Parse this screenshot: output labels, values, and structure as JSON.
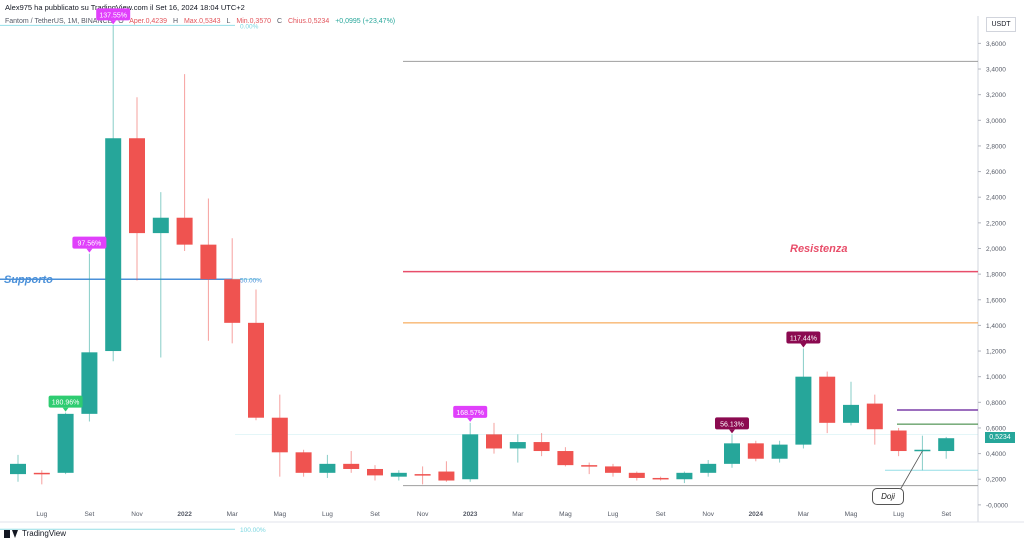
{
  "header": {
    "publisher": "Alex975 ha pubblicato su TradingView.com il Set 16, 2024 18:04 UTC+2"
  },
  "legend": {
    "symbol": "Fantom / TetherUS, 1M, BINANCE",
    "open_label": "O",
    "open": "Aper.0,4239",
    "high_label": "H",
    "high": "Max.0,5343",
    "low_label": "L",
    "low": "Min.0,3570",
    "close_label": "C",
    "close": "Chius.0,5234",
    "change": "+0,0995 (+23,47%)"
  },
  "currency_label": "USDT",
  "last_price_tag": "0,5234",
  "footer": {
    "brand": "TradingView"
  },
  "annotations": {
    "supporto": "Supporto",
    "resistenza": "Resistenza",
    "doji": "Doji"
  },
  "colors": {
    "up": "#26a69a",
    "down": "#ef5350",
    "support_line": "#4a90d9",
    "resistance_line": "#e84e6a",
    "orange_line": "#f59a3a",
    "purple_line": "#7b3fa8",
    "green_line": "#2e7d32",
    "fib_line": "#7ad6e0",
    "magenta_label": "#e040fb",
    "green_label": "#2ecc71",
    "maroon_label": "#8b0a50"
  },
  "chart_data": {
    "type": "candlestick",
    "timeframe": "1M",
    "ylim": [
      -0.04,
      3.72
    ],
    "y_ticks": [
      "-0,0000",
      "0,2000",
      "0,4000",
      "0,6000",
      "0,8000",
      "1,0000",
      "1,2000",
      "1,4000",
      "1,6000",
      "1,8000",
      "2,0000",
      "2,2000",
      "2,4000",
      "2,6000",
      "2,8000",
      "3,0000",
      "3,2000",
      "3,4000",
      "3,6000"
    ],
    "y_tick_values": [
      0,
      0.2,
      0.4,
      0.6,
      0.8,
      1.0,
      1.2,
      1.4,
      1.6,
      1.8,
      2.0,
      2.2,
      2.4,
      2.6,
      2.8,
      3.0,
      3.2,
      3.4,
      3.6
    ],
    "x_ticks": [
      "Lug",
      "Set",
      "Nov",
      "2022",
      "Mar",
      "Mag",
      "Lug",
      "Set",
      "Nov",
      "2023",
      "Mar",
      "Mag",
      "Lug",
      "Set",
      "Nov",
      "2024",
      "Mar",
      "Mag",
      "Lug",
      "Set"
    ],
    "x_tick_index": [
      1,
      3,
      5,
      7,
      9,
      11,
      13,
      15,
      17,
      19,
      21,
      23,
      25,
      27,
      29,
      31,
      33,
      35,
      37,
      39
    ],
    "candles": [
      {
        "o": 0.24,
        "h": 0.39,
        "l": 0.18,
        "c": 0.32
      },
      {
        "o": 0.25,
        "h": 0.27,
        "l": 0.16,
        "c": 0.24
      },
      {
        "o": 0.25,
        "h": 0.72,
        "l": 0.24,
        "c": 0.71
      },
      {
        "o": 0.71,
        "h": 1.96,
        "l": 0.65,
        "c": 1.19
      },
      {
        "o": 1.2,
        "h": 3.74,
        "l": 1.12,
        "c": 2.86
      },
      {
        "o": 2.86,
        "h": 3.18,
        "l": 1.75,
        "c": 2.12
      },
      {
        "o": 2.12,
        "h": 2.44,
        "l": 1.15,
        "c": 2.24
      },
      {
        "o": 2.24,
        "h": 3.36,
        "l": 1.98,
        "c": 2.03
      },
      {
        "o": 2.03,
        "h": 2.39,
        "l": 1.28,
        "c": 1.76
      },
      {
        "o": 1.76,
        "h": 2.08,
        "l": 1.26,
        "c": 1.42
      },
      {
        "o": 1.42,
        "h": 1.68,
        "l": 0.66,
        "c": 0.68
      },
      {
        "o": 0.68,
        "h": 0.86,
        "l": 0.22,
        "c": 0.41
      },
      {
        "o": 0.41,
        "h": 0.43,
        "l": 0.22,
        "c": 0.25
      },
      {
        "o": 0.25,
        "h": 0.39,
        "l": 0.21,
        "c": 0.32
      },
      {
        "o": 0.32,
        "h": 0.42,
        "l": 0.25,
        "c": 0.28
      },
      {
        "o": 0.28,
        "h": 0.31,
        "l": 0.19,
        "c": 0.23
      },
      {
        "o": 0.22,
        "h": 0.27,
        "l": 0.19,
        "c": 0.25
      },
      {
        "o": 0.24,
        "h": 0.3,
        "l": 0.16,
        "c": 0.23
      },
      {
        "o": 0.26,
        "h": 0.34,
        "l": 0.18,
        "c": 0.19
      },
      {
        "o": 0.2,
        "h": 0.64,
        "l": 0.18,
        "c": 0.55
      },
      {
        "o": 0.55,
        "h": 0.64,
        "l": 0.4,
        "c": 0.44
      },
      {
        "o": 0.44,
        "h": 0.55,
        "l": 0.33,
        "c": 0.49
      },
      {
        "o": 0.49,
        "h": 0.56,
        "l": 0.38,
        "c": 0.42
      },
      {
        "o": 0.42,
        "h": 0.45,
        "l": 0.3,
        "c": 0.31
      },
      {
        "o": 0.31,
        "h": 0.33,
        "l": 0.24,
        "c": 0.3
      },
      {
        "o": 0.3,
        "h": 0.32,
        "l": 0.22,
        "c": 0.25
      },
      {
        "o": 0.25,
        "h": 0.26,
        "l": 0.19,
        "c": 0.21
      },
      {
        "o": 0.21,
        "h": 0.22,
        "l": 0.19,
        "c": 0.2
      },
      {
        "o": 0.2,
        "h": 0.26,
        "l": 0.17,
        "c": 0.25
      },
      {
        "o": 0.25,
        "h": 0.35,
        "l": 0.22,
        "c": 0.32
      },
      {
        "o": 0.32,
        "h": 0.55,
        "l": 0.29,
        "c": 0.48
      },
      {
        "o": 0.48,
        "h": 0.5,
        "l": 0.34,
        "c": 0.36
      },
      {
        "o": 0.36,
        "h": 0.5,
        "l": 0.33,
        "c": 0.47
      },
      {
        "o": 0.47,
        "h": 1.22,
        "l": 0.44,
        "c": 1.0
      },
      {
        "o": 1.0,
        "h": 1.04,
        "l": 0.56,
        "c": 0.64
      },
      {
        "o": 0.64,
        "h": 0.96,
        "l": 0.62,
        "c": 0.78
      },
      {
        "o": 0.79,
        "h": 0.86,
        "l": 0.47,
        "c": 0.59
      },
      {
        "o": 0.58,
        "h": 0.6,
        "l": 0.38,
        "c": 0.42
      },
      {
        "o": 0.42,
        "h": 0.54,
        "l": 0.27,
        "c": 0.43
      },
      {
        "o": 0.42,
        "h": 0.53,
        "l": 0.36,
        "c": 0.52
      }
    ],
    "percent_labels": [
      {
        "text": "137.55%",
        "index": 4,
        "price": 3.74,
        "color": "magenta"
      },
      {
        "text": "97.56%",
        "index": 3,
        "price": 1.96,
        "color": "magenta"
      },
      {
        "text": "180.96%",
        "index": 2,
        "price": 0.72,
        "color": "green"
      },
      {
        "text": "168.57%",
        "index": 19,
        "price": 0.64,
        "color": "magenta"
      },
      {
        "text": "56.13%",
        "index": 30,
        "price": 0.55,
        "color": "maroon"
      },
      {
        "text": "117.44%",
        "index": 33,
        "price": 1.22,
        "color": "maroon"
      }
    ],
    "fib_labels": [
      {
        "text": "0.00%",
        "price": 3.74
      },
      {
        "text": "50.00%",
        "price": 1.76
      },
      {
        "text": "100.00%",
        "price": -0.19
      }
    ],
    "horizontal_lines": [
      {
        "name": "top",
        "price": 3.46,
        "color": "gray"
      },
      {
        "name": "resistance",
        "price": 1.82,
        "color": "red"
      },
      {
        "name": "orange",
        "price": 1.42,
        "color": "orange"
      },
      {
        "name": "purple",
        "price": 0.74,
        "color": "purple"
      },
      {
        "name": "green",
        "price": 0.63,
        "color": "green"
      },
      {
        "name": "support",
        "price": 1.76,
        "color": "blue"
      },
      {
        "name": "fib-0",
        "price": 3.74,
        "color": "fib"
      },
      {
        "name": "fib-50",
        "price": 1.76,
        "color": "fib"
      },
      {
        "name": "fib-100",
        "price": -0.19,
        "color": "fib"
      },
      {
        "name": "lower-gray",
        "price": 0.15,
        "color": "gray"
      },
      {
        "name": "light-blue",
        "price": 0.27,
        "color": "fib"
      }
    ]
  }
}
